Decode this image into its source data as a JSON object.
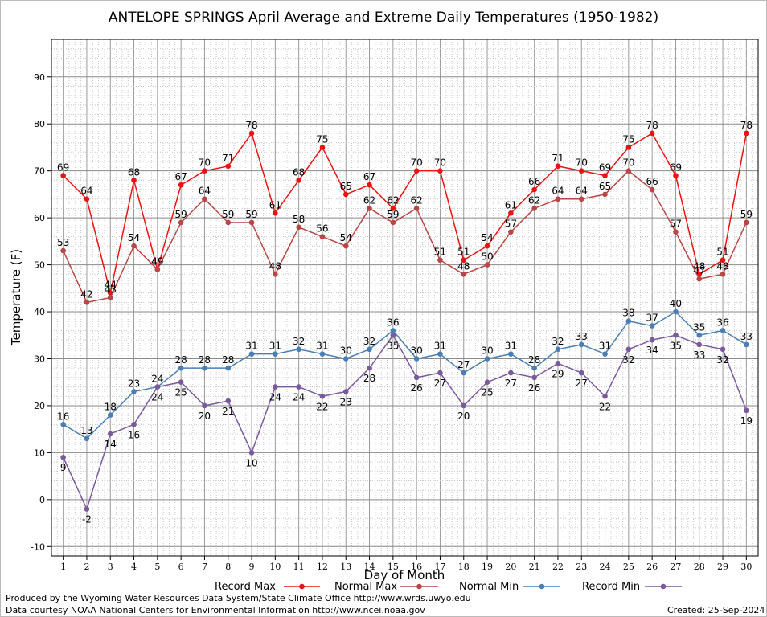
{
  "chart_data": {
    "type": "line",
    "title": "ANTELOPE SPRINGS April Average and Extreme Daily Temperatures (1950-1982)",
    "xlabel": "Day of Month",
    "ylabel": "Temperature (F)",
    "xlim": [
      0.5,
      30.5
    ],
    "ylim": [
      -12,
      98
    ],
    "y_ticks": [
      -10,
      0,
      10,
      20,
      30,
      40,
      50,
      60,
      70,
      80,
      90
    ],
    "x": [
      1,
      2,
      3,
      4,
      5,
      6,
      7,
      8,
      9,
      10,
      11,
      12,
      13,
      14,
      15,
      16,
      17,
      18,
      19,
      20,
      21,
      22,
      23,
      24,
      25,
      26,
      27,
      28,
      29,
      30
    ],
    "grid": true,
    "legend_position": "bottom",
    "series": [
      {
        "name": "Record Max",
        "color": "#ee1111",
        "label_position": "above",
        "values": [
          69,
          64,
          44,
          68,
          49,
          67,
          70,
          71,
          78,
          61,
          68,
          75,
          65,
          67,
          62,
          70,
          70,
          51,
          54,
          61,
          66,
          71,
          70,
          69,
          75,
          78,
          69,
          48,
          51,
          78
        ]
      },
      {
        "name": "Normal Max",
        "color": "#b94545",
        "label_position": "above",
        "values": [
          53,
          42,
          43,
          54,
          49,
          59,
          64,
          59,
          59,
          48,
          58,
          56,
          54,
          62,
          59,
          62,
          51,
          48,
          50,
          57,
          62,
          64,
          64,
          65,
          70,
          66,
          57,
          47,
          48,
          59
        ]
      },
      {
        "name": "Normal Min",
        "color": "#4a7fb5",
        "label_position": "above",
        "values": [
          16,
          13,
          18,
          23,
          24,
          28,
          28,
          28,
          31,
          31,
          32,
          31,
          30,
          32,
          36,
          30,
          31,
          27,
          30,
          31,
          28,
          32,
          33,
          31,
          38,
          37,
          40,
          35,
          36,
          33
        ]
      },
      {
        "name": "Record Min",
        "color": "#7a5a9c",
        "label_position": "below",
        "values": [
          9,
          -2,
          14,
          16,
          24,
          25,
          20,
          21,
          10,
          24,
          24,
          22,
          23,
          28,
          35,
          26,
          27,
          20,
          25,
          27,
          26,
          29,
          27,
          22,
          32,
          34,
          35,
          33,
          32,
          19
        ]
      }
    ]
  },
  "footer": {
    "produced_by": "Produced by the Wyoming Water Resources Data System/State Climate Office http://www.wrds.uwyo.edu",
    "data_courtesy": "Data courtesy NOAA National Centers for Environmental Information http://www.ncei.noaa.gov",
    "created": "Created:  25-Sep-2024"
  }
}
